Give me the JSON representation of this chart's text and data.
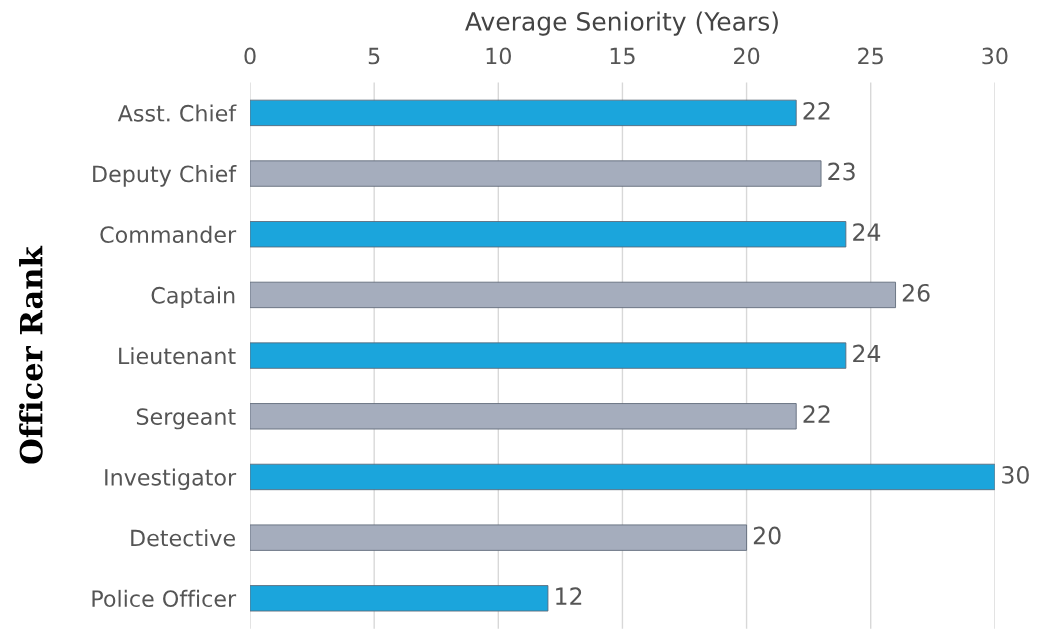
{
  "chart_data": {
    "type": "bar",
    "orientation": "horizontal",
    "xlabel": "Average Seniority (Years)",
    "ylabel": "Officer Rank",
    "categories": [
      "Asst. Chief",
      "Deputy Chief",
      "Commander",
      "Captain",
      "Lieutenant",
      "Sergeant",
      "Investigator",
      "Detective",
      "Police Officer"
    ],
    "values": [
      22,
      23,
      24,
      26,
      24,
      22,
      30,
      20,
      12
    ],
    "colors": [
      "#1ba5dc",
      "#a5adbd",
      "#1ba5dc",
      "#a5adbd",
      "#1ba5dc",
      "#a5adbd",
      "#1ba5dc",
      "#a5adbd",
      "#1ba5dc"
    ],
    "xlim": [
      0,
      30
    ],
    "xticks": [
      0,
      5,
      10,
      15,
      20,
      25,
      30
    ],
    "grid": "x",
    "data_labels": true
  }
}
